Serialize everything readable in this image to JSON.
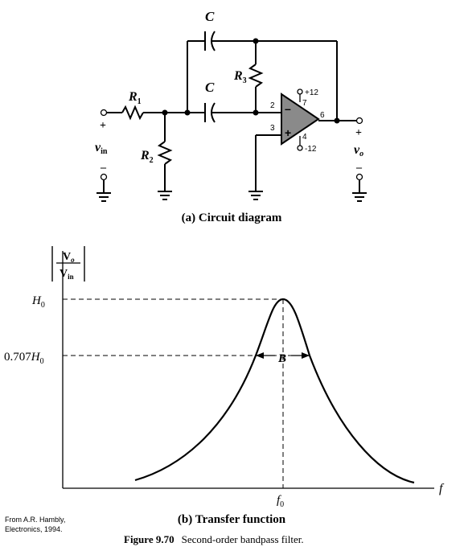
{
  "circuit": {
    "capacitor_top_label": "C",
    "capacitor_mid_label": "C",
    "r1_label": "R",
    "r1_sub": "1",
    "r2_label": "R",
    "r2_sub": "2",
    "r3_label": "R",
    "r3_sub": "3",
    "vin_label": "v",
    "vin_sub": "in",
    "vo_label": "v",
    "vo_sub": "o",
    "plus_sign": "+",
    "minus_sign": "–",
    "pin_2": "2",
    "pin_3": "3",
    "pin_4": "4",
    "pin_6": "6",
    "pin_7": "7",
    "supply_pos": "+12",
    "supply_neg": "-12",
    "opamp_minus": "–",
    "opamp_plus": "+",
    "caption": "(a) Circuit diagram"
  },
  "transfer": {
    "y_axis_label_num": "V",
    "y_axis_label_num_sub": "o",
    "y_axis_label_den": "V",
    "y_axis_label_den_sub": "in",
    "h0_label": "H",
    "h0_sub": "0",
    "h707_prefix": "0.707",
    "h707_label": "H",
    "h707_sub": "0",
    "bandwidth_label": "B",
    "x_axis_label": "f",
    "f0_label": "f",
    "f0_sub": "0",
    "caption": "(b) Transfer function"
  },
  "figure": {
    "number": "Figure 9.70",
    "title": "Second-order bandpass filter."
  },
  "credit": {
    "line1": "From A.R. Hambly,",
    "line2": "Electronics, 1994."
  }
}
